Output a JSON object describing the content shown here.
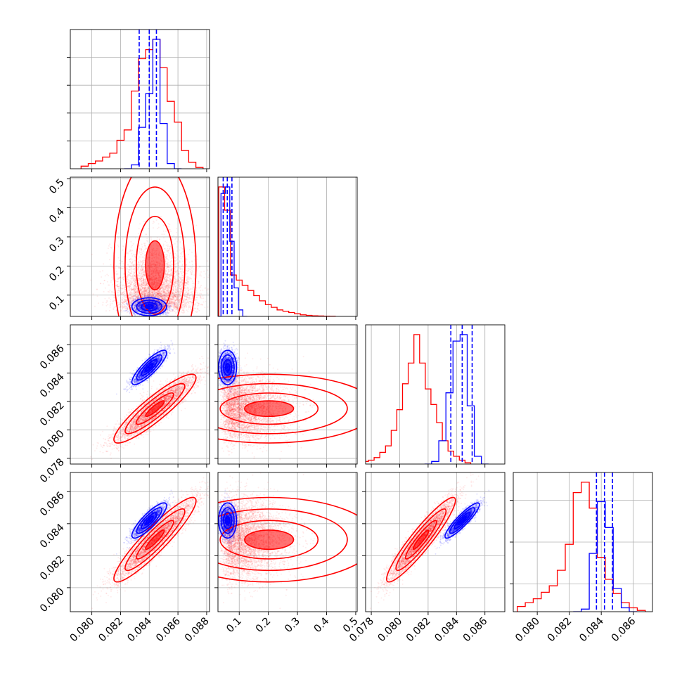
{
  "colors": {
    "blue": "#0000ff",
    "red": "#ff0000",
    "grid": "#b0b0b0"
  },
  "chart_data": {
    "type": "corner",
    "grid": true,
    "tick_label_rotation": 45,
    "axes": [
      {
        "range": [
          0.0785,
          0.0882
        ],
        "ticks": [
          0.08,
          0.082,
          0.084,
          0.086,
          0.088
        ],
        "tick_labels": [
          "0.080",
          "0.082",
          "0.084",
          "0.086",
          "0.088"
        ]
      },
      {
        "range": [
          0.027,
          0.505
        ],
        "ticks": [
          0.1,
          0.2,
          0.3,
          0.4,
          0.5
        ],
        "tick_labels": [
          "0.1",
          "0.2",
          "0.3",
          "0.4",
          "0.5"
        ]
      },
      {
        "range": [
          0.0776,
          0.0874
        ],
        "ticks": [
          0.078,
          0.08,
          0.082,
          0.084,
          0.086
        ],
        "tick_labels": [
          "0.078",
          "0.080",
          "0.082",
          "0.084",
          "0.086"
        ]
      },
      {
        "range": [
          0.0785,
          0.0872
        ],
        "ticks": [
          0.08,
          0.082,
          0.084,
          0.086
        ],
        "tick_labels": [
          "0.080",
          "0.082",
          "0.084",
          "0.086"
        ]
      }
    ],
    "diagonal_ticks": [
      {
        "values": [
          0.2,
          0.4,
          0.6,
          0.8
        ]
      },
      {
        "values": []
      },
      {
        "values": []
      },
      {
        "values": [
          0.2,
          0.5,
          0.8
        ]
      }
    ],
    "series": [
      {
        "color": "#0000ff",
        "points": 2500,
        "mean": [
          0.084,
          0.06,
          0.0844,
          0.0842
        ],
        "std": [
          0.00055,
          0.014,
          0.00055,
          0.0005
        ],
        "corr": [
          [
            1,
            0.0,
            0.85,
            0.85
          ],
          [
            0.0,
            1,
            0.0,
            0.0
          ],
          [
            0.85,
            0.0,
            1,
            0.9
          ],
          [
            0.85,
            0.0,
            0.9,
            1
          ]
        ],
        "quantiles": [
          [
            0.0833,
            0.084,
            0.0845
          ],
          [
            0.045,
            0.059,
            0.075
          ],
          [
            0.0836,
            0.0844,
            0.0851
          ],
          [
            0.0837,
            0.0842,
            0.0847
          ]
        ],
        "hist": [
          [
            [
              0.0825,
              0.0
            ],
            [
              0.083,
              0.03
            ],
            [
              0.0835,
              0.32
            ],
            [
              0.084,
              0.58
            ],
            [
              0.0845,
              1.0
            ],
            [
              0.085,
              0.35
            ],
            [
              0.0855,
              0.04
            ],
            [
              0.086,
              0.0
            ]
          ],
          [
            [
              0.03,
              0.0
            ],
            [
              0.045,
              0.95
            ],
            [
              0.06,
              1.0
            ],
            [
              0.075,
              0.58
            ],
            [
              0.09,
              0.22
            ],
            [
              0.105,
              0.05
            ],
            [
              0.12,
              0.0
            ]
          ],
          [
            [
              0.082,
              0.0
            ],
            [
              0.0825,
              0.02
            ],
            [
              0.083,
              0.18
            ],
            [
              0.0835,
              0.55
            ],
            [
              0.084,
              0.95
            ],
            [
              0.0845,
              1.0
            ],
            [
              0.085,
              0.45
            ],
            [
              0.0855,
              0.06
            ],
            [
              0.086,
              0.0
            ]
          ],
          [
            [
              0.0825,
              0.0
            ],
            [
              0.083,
              0.02
            ],
            [
              0.0835,
              0.45
            ],
            [
              0.084,
              0.85
            ],
            [
              0.0845,
              0.65
            ],
            [
              0.085,
              0.18
            ],
            [
              0.0855,
              0.03
            ],
            [
              0.086,
              0.0
            ]
          ]
        ]
      },
      {
        "color": "#ff0000",
        "points": 5000,
        "mean": [
          0.0844,
          0.11,
          0.0815,
          0.083
        ],
        "std": [
          0.0013,
          0.07,
          0.0011,
          0.0012
        ],
        "corr": [
          [
            1,
            0.0,
            0.9,
            0.92
          ],
          [
            0.0,
            1,
            0.0,
            0.0
          ],
          [
            0.9,
            0.0,
            1,
            0.93
          ],
          [
            0.92,
            0.0,
            0.93,
            1
          ]
        ],
        "hist": [
          [
            [
              0.0795,
              0.02
            ],
            [
              0.08,
              0.04
            ],
            [
              0.0805,
              0.06
            ],
            [
              0.081,
              0.09
            ],
            [
              0.0815,
              0.12
            ],
            [
              0.082,
              0.22
            ],
            [
              0.0825,
              0.3
            ],
            [
              0.083,
              0.6
            ],
            [
              0.0835,
              0.85
            ],
            [
              0.084,
              0.92
            ],
            [
              0.0845,
              1.0
            ],
            [
              0.085,
              0.78
            ],
            [
              0.0855,
              0.52
            ],
            [
              0.086,
              0.36
            ],
            [
              0.0865,
              0.14
            ],
            [
              0.087,
              0.05
            ],
            [
              0.0875,
              0.01
            ]
          ],
          [
            [
              0.04,
              1.0
            ],
            [
              0.06,
              0.82
            ],
            [
              0.08,
              0.32
            ],
            [
              0.1,
              0.28
            ],
            [
              0.12,
              0.24
            ],
            [
              0.14,
              0.2
            ],
            [
              0.16,
              0.16
            ],
            [
              0.18,
              0.12
            ],
            [
              0.2,
              0.09
            ],
            [
              0.22,
              0.07
            ],
            [
              0.24,
              0.05
            ],
            [
              0.26,
              0.04
            ],
            [
              0.28,
              0.03
            ],
            [
              0.3,
              0.02
            ],
            [
              0.32,
              0.012
            ],
            [
              0.34,
              0.008
            ],
            [
              0.36,
              0.005
            ],
            [
              0.38,
              0.003
            ],
            [
              0.4,
              0.002
            ],
            [
              0.42,
              0.001
            ]
          ],
          [
            [
              0.0776,
              0.02
            ],
            [
              0.078,
              0.03
            ],
            [
              0.0784,
              0.05
            ],
            [
              0.0788,
              0.09
            ],
            [
              0.0792,
              0.14
            ],
            [
              0.0796,
              0.26
            ],
            [
              0.08,
              0.42
            ],
            [
              0.0804,
              0.62
            ],
            [
              0.0808,
              0.78
            ],
            [
              0.0812,
              1.0
            ],
            [
              0.0816,
              0.78
            ],
            [
              0.082,
              0.58
            ],
            [
              0.0824,
              0.46
            ],
            [
              0.0828,
              0.32
            ],
            [
              0.0832,
              0.18
            ],
            [
              0.0836,
              0.1
            ],
            [
              0.084,
              0.06
            ],
            [
              0.0844,
              0.03
            ],
            [
              0.0848,
              0.01
            ]
          ],
          [
            [
              0.079,
              0.04
            ],
            [
              0.0795,
              0.07
            ],
            [
              0.08,
              0.1
            ],
            [
              0.0805,
              0.15
            ],
            [
              0.081,
              0.2
            ],
            [
              0.0815,
              0.32
            ],
            [
              0.082,
              0.52
            ],
            [
              0.0825,
              0.92
            ],
            [
              0.083,
              1.0
            ],
            [
              0.0835,
              0.8
            ],
            [
              0.084,
              0.42
            ],
            [
              0.0845,
              0.25
            ],
            [
              0.085,
              0.14
            ],
            [
              0.0855,
              0.07
            ],
            [
              0.086,
              0.03
            ],
            [
              0.0865,
              0.01
            ]
          ]
        ]
      }
    ]
  }
}
